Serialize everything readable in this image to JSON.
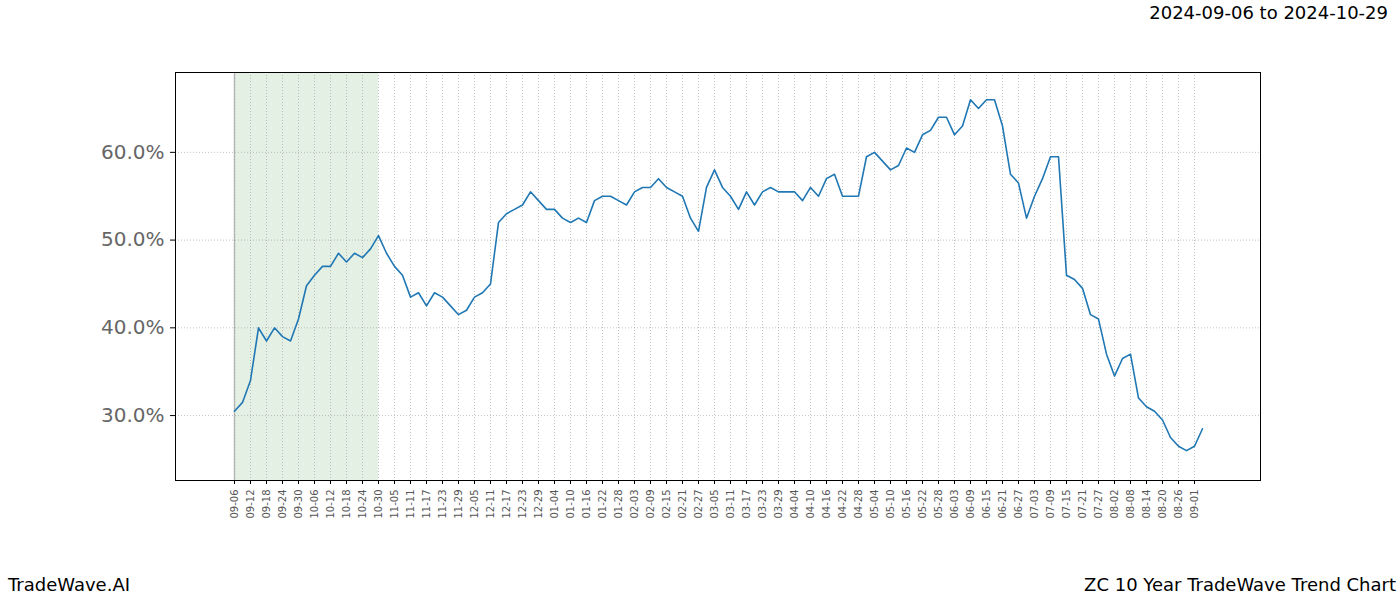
{
  "chart_data": {
    "type": "line",
    "title": "ZC 10 Year TradeWave Trend Chart",
    "subtitle": "2024-09-06 to 2024-10-29",
    "source": "TradeWave.AI",
    "color": "#1f77b4",
    "grid": true,
    "highlight": {
      "from": "09-06",
      "to": "10-30",
      "color": "#e5f0e5"
    },
    "ylim": [
      22.6,
      69.1
    ],
    "yticks": [
      {
        "value": 30,
        "label": "30.0%"
      },
      {
        "value": 40,
        "label": "40.0%"
      },
      {
        "value": 50,
        "label": "50.0%"
      },
      {
        "value": 60,
        "label": "60.0%"
      }
    ],
    "categories": [
      "09-06",
      null,
      "09-12",
      null,
      "09-18",
      null,
      "09-24",
      null,
      "09-30",
      null,
      "10-06",
      null,
      "10-12",
      null,
      "10-18",
      null,
      "10-24",
      null,
      "10-30",
      null,
      "11-05",
      null,
      "11-11",
      null,
      "11-17",
      null,
      "11-23",
      null,
      "11-29",
      null,
      "12-05",
      null,
      "12-11",
      null,
      "12-17",
      null,
      "12-23",
      null,
      "12-29",
      null,
      "01-04",
      null,
      "01-10",
      null,
      "01-16",
      null,
      "01-22",
      null,
      "01-28",
      null,
      "02-03",
      null,
      "02-09",
      null,
      "02-15",
      null,
      "02-21",
      null,
      "02-27",
      null,
      "03-05",
      null,
      "03-11",
      null,
      "03-17",
      null,
      "03-23",
      null,
      "03-29",
      null,
      "04-04",
      null,
      "04-10",
      null,
      "04-16",
      null,
      "04-22",
      null,
      "04-28",
      null,
      "05-04",
      null,
      "05-10",
      null,
      "05-16",
      null,
      "05-22",
      null,
      "05-28",
      null,
      "06-03",
      null,
      "06-09",
      null,
      "06-15",
      null,
      "06-21",
      null,
      "06-27",
      null,
      "07-03",
      null,
      "07-09",
      null,
      "07-15",
      null,
      "07-21",
      null,
      "07-27",
      null,
      "08-02",
      null,
      "08-08",
      null,
      "08-14",
      null,
      "08-20",
      null,
      "08-26",
      null,
      "09-01",
      null
    ],
    "values": [
      30.5,
      31.5,
      34,
      40,
      38.5,
      40,
      39,
      38.5,
      41,
      44.8,
      46,
      47,
      47,
      48.5,
      47.5,
      48.5,
      48,
      49,
      50.5,
      48.5,
      47,
      46,
      43.5,
      44,
      42.5,
      44,
      43.5,
      42.5,
      41.5,
      42,
      43.5,
      44,
      45,
      52,
      53,
      53.5,
      54,
      55.5,
      54.5,
      53.5,
      53.5,
      52.5,
      52,
      52.5,
      52,
      54.5,
      55,
      55,
      54.5,
      54,
      55.5,
      56,
      56,
      57,
      56,
      55.5,
      55,
      52.5,
      51,
      56,
      58,
      56,
      55,
      53.5,
      55.5,
      54,
      55.5,
      56,
      55.5,
      55.5,
      55.5,
      54.5,
      56,
      55,
      57,
      57.5,
      55,
      55,
      55,
      59.5,
      60,
      59,
      58,
      58.5,
      60.5,
      60,
      62,
      62.5,
      64,
      64,
      62,
      63,
      66,
      65,
      66,
      66,
      63,
      57.5,
      56.5,
      52.5,
      55,
      57,
      59.5,
      59.5,
      46,
      45.5,
      44.5,
      41.5,
      41,
      37,
      34.5,
      36.5,
      37,
      32,
      31,
      30.5,
      29.5,
      27.5,
      26.5,
      26,
      26.5,
      28.5
    ]
  }
}
